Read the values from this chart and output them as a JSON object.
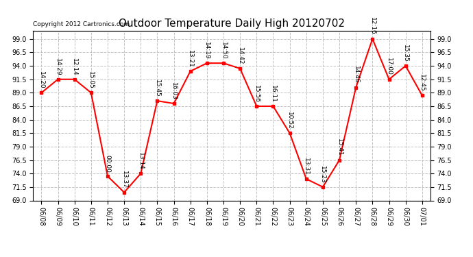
{
  "title": "Outdoor Temperature Daily High 20120702",
  "copyright": "Copyright 2012 Cartronics.com",
  "x_labels": [
    "06/08",
    "06/09",
    "06/10",
    "06/11",
    "06/12",
    "06/13",
    "06/14",
    "06/15",
    "06/16",
    "06/17",
    "06/18",
    "06/19",
    "06/20",
    "06/21",
    "06/22",
    "06/23",
    "06/24",
    "06/25",
    "06/26",
    "06/27",
    "06/28",
    "06/29",
    "06/30",
    "07/01"
  ],
  "y_values": [
    89.0,
    91.5,
    91.5,
    89.0,
    73.5,
    70.5,
    74.0,
    87.5,
    87.0,
    93.0,
    94.5,
    94.5,
    93.5,
    86.5,
    86.5,
    81.5,
    73.0,
    71.5,
    76.5,
    90.0,
    99.0,
    91.5,
    94.0,
    88.5
  ],
  "time_labels": [
    "14:20",
    "14:29",
    "12:14",
    "15:05",
    "00:00",
    "13:37",
    "13:14",
    "15:45",
    "16:03",
    "13:21",
    "14:19",
    "14:50",
    "14:42",
    "15:56",
    "16:11",
    "10:52",
    "13:31",
    "15:23",
    "15:41",
    "14:46",
    "12:16",
    "17:00",
    "15:35",
    "12:45"
  ],
  "ylim": [
    69.0,
    100.5
  ],
  "yticks": [
    69.0,
    71.5,
    74.0,
    76.5,
    79.0,
    81.5,
    84.0,
    86.5,
    89.0,
    91.5,
    94.0,
    96.5,
    99.0
  ],
  "line_color": "#FF0000",
  "marker_color": "#FF0000",
  "bg_color": "#FFFFFF",
  "grid_color": "#BBBBBB",
  "title_fontsize": 11,
  "label_fontsize": 6.5,
  "tick_fontsize": 7,
  "copyright_fontsize": 6.5
}
